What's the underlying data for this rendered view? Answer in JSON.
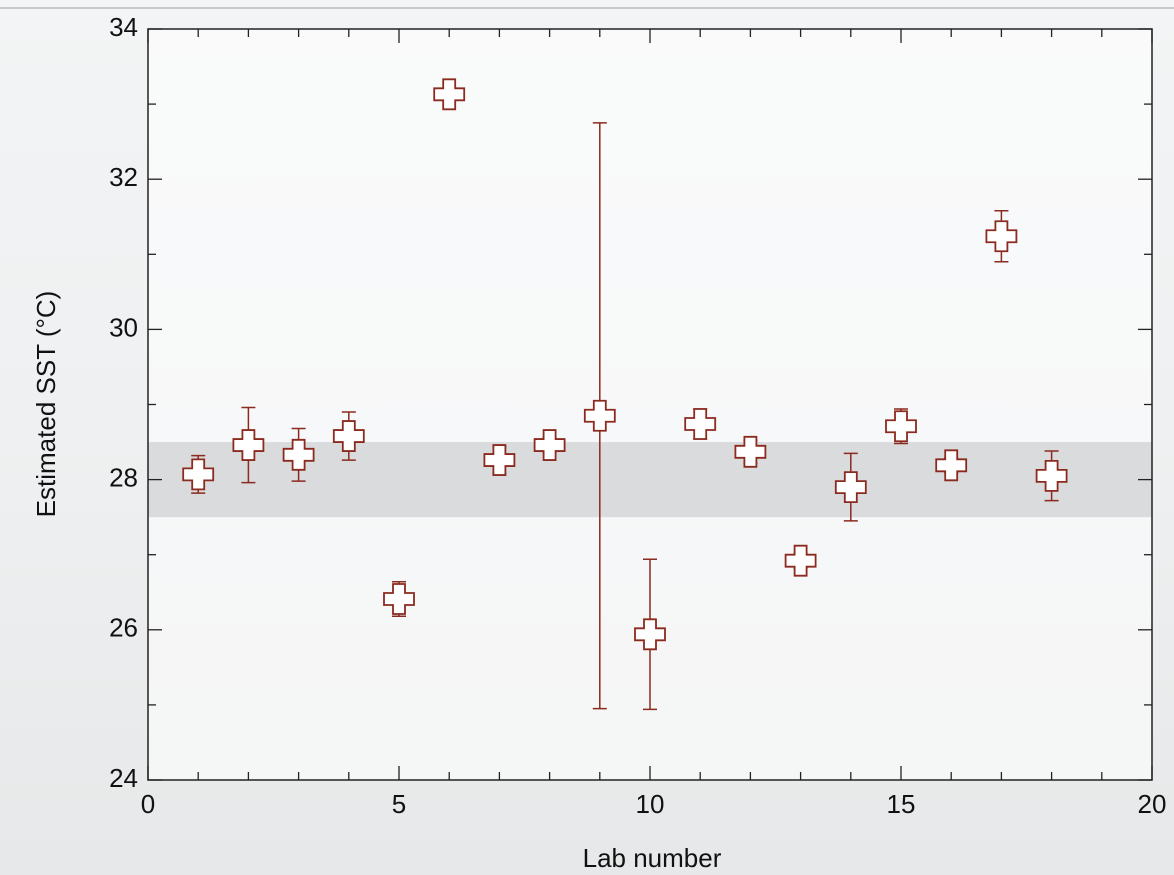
{
  "chart_data": {
    "type": "scatter",
    "xlabel": "Lab number",
    "ylabel": "Estimated SST (°C)",
    "x": [
      1,
      2,
      3,
      4,
      5,
      6,
      7,
      8,
      9,
      10,
      11,
      12,
      13,
      14,
      15,
      16,
      17,
      18
    ],
    "values": [
      28.07,
      28.46,
      28.33,
      28.58,
      26.41,
      33.13,
      28.26,
      28.46,
      28.85,
      25.94,
      28.74,
      28.37,
      26.92,
      27.9,
      28.71,
      28.19,
      31.24,
      28.05
    ],
    "errors": [
      0.25,
      0.5,
      0.35,
      0.32,
      0.23,
      0,
      0.18,
      0.1,
      3.9,
      1.0,
      0.2,
      0.15,
      0.1,
      0.45,
      0.23,
      0.1,
      0.34,
      0.33
    ],
    "color": "#8b2a1e",
    "band": [
      27.5,
      28.5
    ],
    "band_color": "#d4d6d8",
    "xlim": [
      0,
      20
    ],
    "xticks": [
      0,
      5,
      10,
      15,
      20
    ],
    "xminorticks": [
      1,
      2,
      3,
      4,
      6,
      7,
      8,
      9,
      11,
      12,
      13,
      14,
      16,
      17,
      18,
      19
    ],
    "ylim": [
      24,
      34
    ],
    "yticks": [
      24,
      26,
      28,
      30,
      32,
      34
    ],
    "yminorticks": [
      25,
      27,
      29,
      31,
      33
    ]
  }
}
